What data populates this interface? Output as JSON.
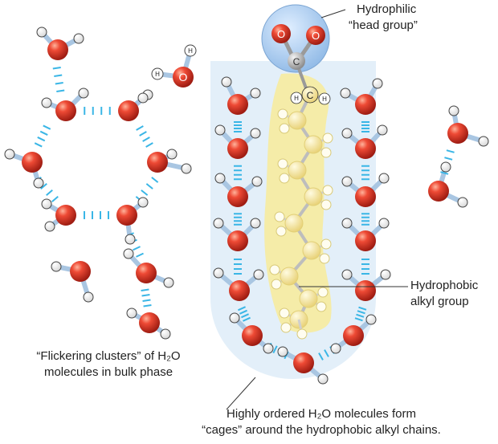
{
  "labels": {
    "head_group": [
      "Hydrophilic",
      "“head group”"
    ],
    "alkyl_group": [
      "Hydrophobic",
      "alkyl group"
    ],
    "clusters": [
      "“Flickering clusters” of H₂O",
      "molecules in bulk phase"
    ],
    "cages": [
      "Highly ordered H₂O molecules form",
      "“cages” around the hydrophobic alkyl chains."
    ]
  },
  "atoms": {
    "oxygen": "O",
    "carbon": "C",
    "hydrogen": "H"
  },
  "colors": {
    "oxygen": "#e23a2a",
    "hydrogen": "#ffffff",
    "bond": "#a9c6e2",
    "hbond": "#3ab6e6",
    "cage_background": "#e3eff9",
    "head_sphere": "#a9cbee",
    "chain_glow": "#f6eb9e",
    "carbon": "#bdbdbd"
  }
}
